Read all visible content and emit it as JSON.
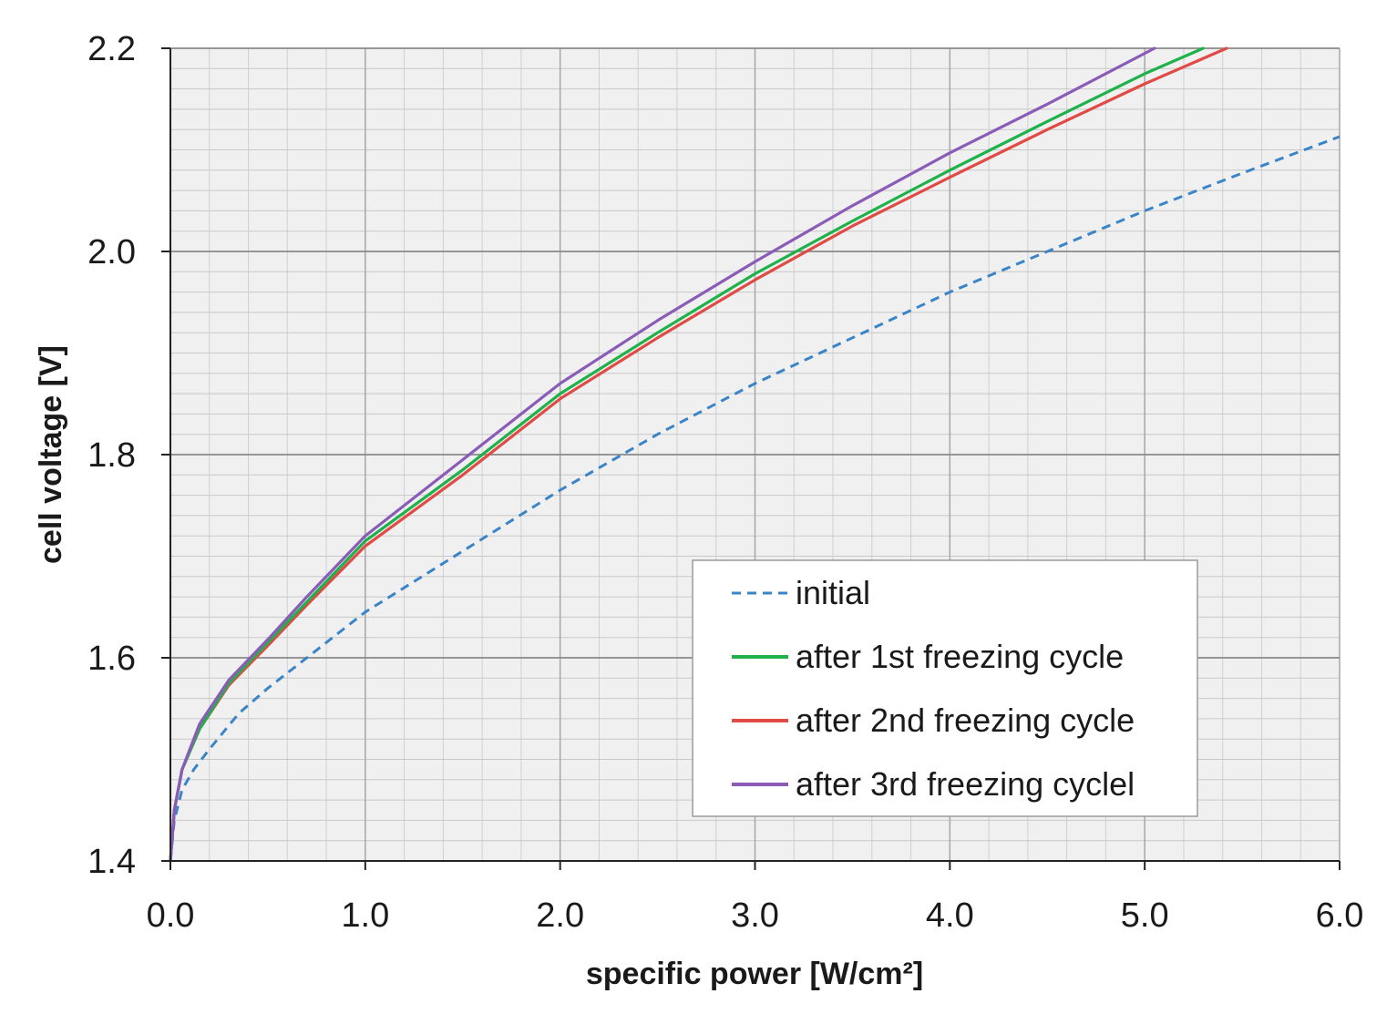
{
  "chart_data": {
    "type": "line",
    "title": "",
    "xlabel": "specific power [W/cm²]",
    "ylabel": "cell voltage [V]",
    "xlim": [
      0,
      6
    ],
    "ylim": [
      1.4,
      2.2
    ],
    "xticks": [
      "0.0",
      "1.0",
      "2.0",
      "3.0",
      "4.0",
      "5.0",
      "6.0"
    ],
    "yticks": [
      "1.4",
      "1.6",
      "1.8",
      "2.0",
      "2.2"
    ],
    "grid": true,
    "legend_position": "lower-right",
    "series": [
      {
        "name": "initial",
        "color": "#3a85c8",
        "style": "dashed",
        "x": [
          0,
          0.02,
          0.06,
          0.12,
          0.2,
          0.35,
          0.5,
          0.7,
          1.0,
          1.5,
          2.0,
          2.5,
          3.0,
          3.5,
          4.0,
          4.5,
          5.0,
          5.5,
          6.0
        ],
        "y": [
          1.4,
          1.44,
          1.47,
          1.49,
          1.51,
          1.545,
          1.57,
          1.6,
          1.645,
          1.705,
          1.765,
          1.82,
          1.87,
          1.915,
          1.96,
          2.0,
          2.04,
          2.077,
          2.113
        ]
      },
      {
        "name": "after 1st freezing cycle",
        "color": "#1fb24a",
        "style": "solid",
        "x": [
          0,
          0.02,
          0.06,
          0.15,
          0.3,
          0.5,
          0.7,
          1.0,
          1.5,
          2.0,
          2.5,
          3.0,
          3.5,
          4.0,
          4.5,
          5.0,
          5.3
        ],
        "y": [
          1.4,
          1.45,
          1.49,
          1.53,
          1.575,
          1.615,
          1.655,
          1.715,
          1.785,
          1.86,
          1.92,
          1.978,
          2.03,
          2.08,
          2.128,
          2.175,
          2.2
        ]
      },
      {
        "name": "after 2nd freezing cycle",
        "color": "#e04b45",
        "style": "solid",
        "x": [
          0,
          0.02,
          0.06,
          0.15,
          0.3,
          0.5,
          0.7,
          1.0,
          1.5,
          2.0,
          2.5,
          3.0,
          3.5,
          4.0,
          4.5,
          5.0,
          5.42
        ],
        "y": [
          1.4,
          1.45,
          1.49,
          1.53,
          1.573,
          1.612,
          1.652,
          1.71,
          1.78,
          1.855,
          1.915,
          1.972,
          2.025,
          2.073,
          2.12,
          2.165,
          2.2
        ]
      },
      {
        "name": "after 3rd freezing cyclel",
        "color": "#8a5cb8",
        "style": "solid",
        "x": [
          0,
          0.02,
          0.06,
          0.15,
          0.3,
          0.5,
          0.7,
          1.0,
          1.5,
          2.0,
          2.5,
          3.0,
          3.5,
          4.0,
          4.5,
          5.05
        ],
        "y": [
          1.4,
          1.45,
          1.49,
          1.535,
          1.578,
          1.618,
          1.66,
          1.72,
          1.795,
          1.87,
          1.932,
          1.99,
          2.045,
          2.097,
          2.145,
          2.2
        ]
      }
    ]
  }
}
